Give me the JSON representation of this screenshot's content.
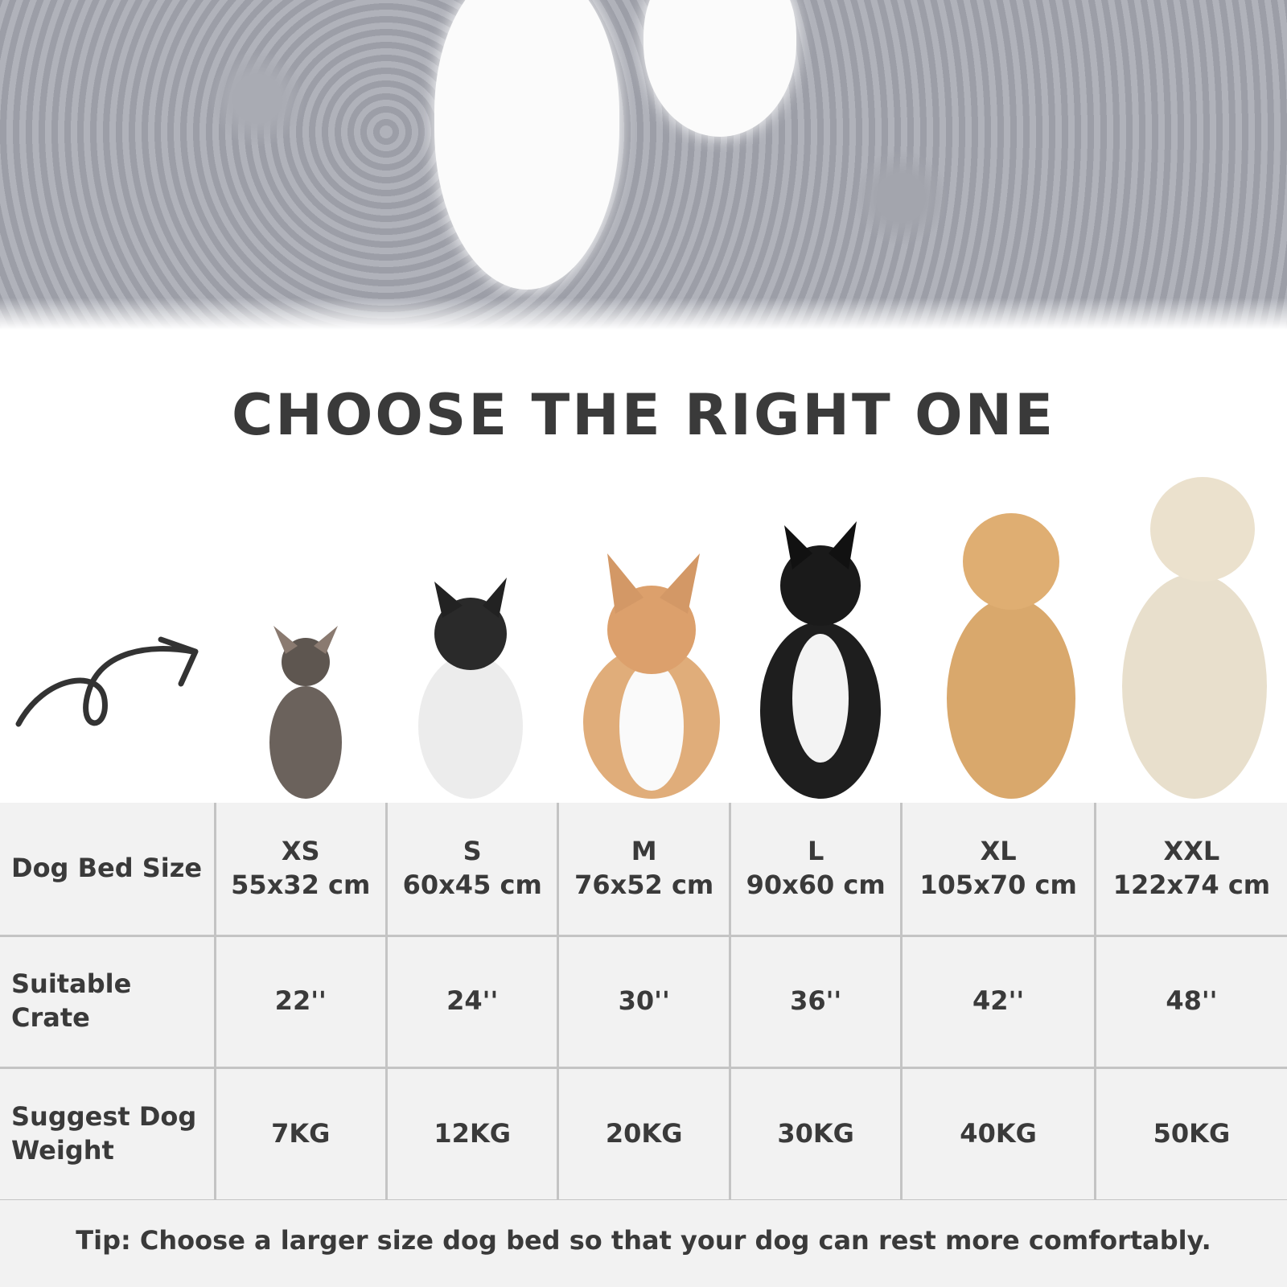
{
  "title": "CHOOSE THE RIGHT ONE",
  "table": {
    "rows": [
      {
        "label": "Dog Bed Size",
        "cells": [
          [
            "XS",
            "55x32 cm"
          ],
          [
            "S",
            "60x45 cm"
          ],
          [
            "M",
            "76x52 cm"
          ],
          [
            "L",
            "90x60 cm"
          ],
          [
            "XL",
            "105x70 cm"
          ],
          [
            "XXL",
            "122x74 cm"
          ]
        ]
      },
      {
        "label": "Suitable Crate",
        "cells": [
          [
            "22''"
          ],
          [
            "24''"
          ],
          [
            "30''"
          ],
          [
            "36''"
          ],
          [
            "42''"
          ],
          [
            "48''"
          ]
        ]
      },
      {
        "label": "Suggest Dog Weight",
        "cells": [
          [
            "7KG"
          ],
          [
            "12KG"
          ],
          [
            "20KG"
          ],
          [
            "30KG"
          ],
          [
            "40KG"
          ],
          [
            "50KG"
          ]
        ]
      }
    ]
  },
  "tip": "Tip: Choose a larger size dog bed so that your dog can rest more comfortably.",
  "colors": {
    "text": "#3a3a3a",
    "table_bg": "#f2f2f2",
    "grid": "#c4c4c4",
    "fur": "#a6a8b0"
  },
  "icons": [
    "curly-arrow-icon"
  ]
}
